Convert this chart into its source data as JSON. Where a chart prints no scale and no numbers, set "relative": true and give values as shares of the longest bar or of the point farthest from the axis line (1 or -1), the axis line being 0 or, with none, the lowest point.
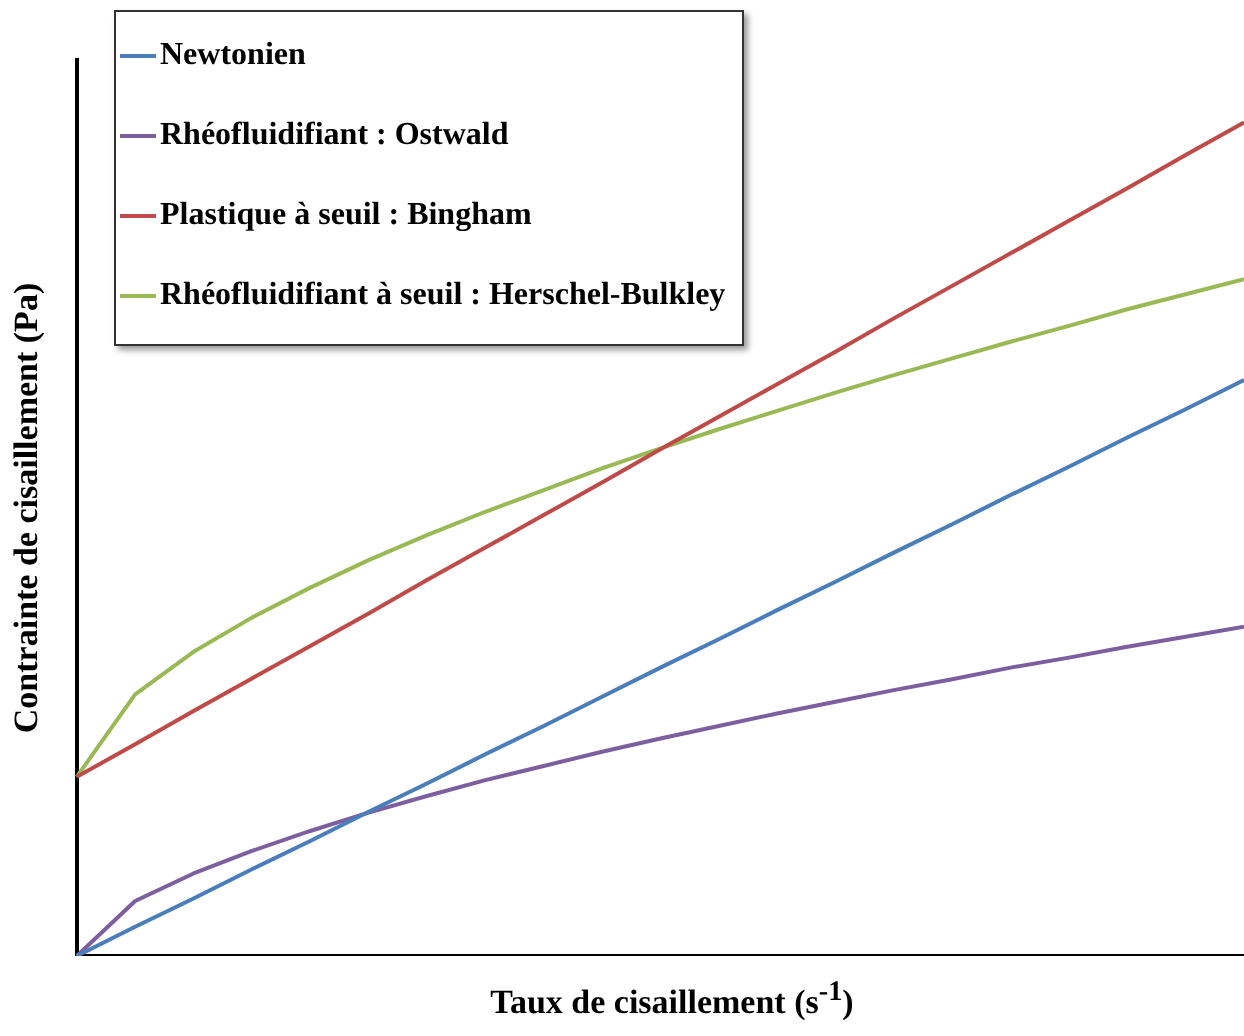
{
  "chart_data": {
    "type": "line",
    "relative": true,
    "xlabel": "Taux de cisaillement  (s$^{-1}$)",
    "ylabel": "Contrainte de cisaillement (Pa)",
    "legend": "top left",
    "marker": "none",
    "line_style": "solid",
    "grid": false,
    "categories": [
      null,
      null,
      null,
      null,
      null,
      null,
      null,
      null,
      null,
      null,
      null,
      null,
      null,
      null,
      null,
      null,
      null,
      null,
      null,
      null,
      null
    ],
    "series": [
      {
        "name": "Newtonien",
        "color": "#4a7ebb",
        "values": [
          0,
          0.035,
          0.069,
          0.104,
          0.138,
          0.173,
          0.207,
          0.242,
          0.276,
          0.311,
          0.346,
          0.38,
          0.415,
          0.449,
          0.484,
          0.518,
          0.553,
          0.587,
          0.622,
          0.656,
          0.691
        ]
      },
      {
        "name": "Rhéofluidifiant : Ostwald",
        "color": "#7d5fa0",
        "values": [
          0,
          0.066,
          0.099,
          0.126,
          0.15,
          0.172,
          0.192,
          0.211,
          0.228,
          0.245,
          0.261,
          0.276,
          0.291,
          0.305,
          0.319,
          0.332,
          0.346,
          0.358,
          0.371,
          0.383,
          0.395
        ]
      },
      {
        "name": "Plastique à seuil : Bingham",
        "color": "#be4b48",
        "values": [
          0.215,
          0.254,
          0.294,
          0.333,
          0.372,
          0.411,
          0.451,
          0.49,
          0.529,
          0.568,
          0.608,
          0.647,
          0.686,
          0.725,
          0.765,
          0.804,
          0.843,
          0.882,
          0.921,
          0.961,
          1
        ]
      },
      {
        "name": "Rhéofluidifiant à seuil : Herschel-Bulkley",
        "color": "#98b954",
        "values": [
          0.215,
          0.314,
          0.365,
          0.406,
          0.442,
          0.475,
          0.505,
          0.533,
          0.559,
          0.585,
          0.609,
          0.632,
          0.654,
          0.676,
          0.697,
          0.717,
          0.737,
          0.756,
          0.776,
          0.794,
          0.812
        ]
      }
    ]
  }
}
